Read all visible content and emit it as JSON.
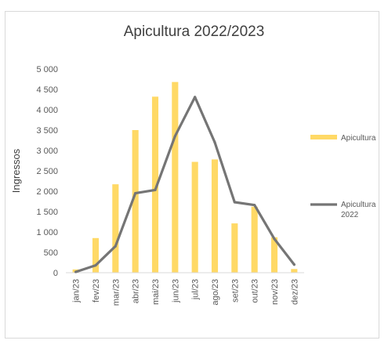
{
  "chart_data": {
    "type": "bar+line",
    "title": "Apicultura 2022/2023",
    "ylabel": "Ingressos",
    "xlabel": "",
    "ylim": [
      0,
      5000
    ],
    "yticks": [
      0,
      500,
      1000,
      1500,
      2000,
      2500,
      3000,
      3500,
      4000,
      4500,
      5000
    ],
    "ytick_labels": [
      "0",
      "500",
      "1 000",
      "1 500",
      "2 000",
      "2 500",
      "3 000",
      "3 500",
      "4 000",
      "4 500",
      "5 000"
    ],
    "grid": false,
    "legend_position": "right",
    "categories": [
      "jan/23",
      "fev/23",
      "mar/23",
      "abr/23",
      "mai/23",
      "jun/23",
      "jul/23",
      "ago/23",
      "set/23",
      "out/23",
      "nov/23",
      "dez/23"
    ],
    "series": [
      {
        "name": "Apicultura",
        "kind": "bar",
        "color": "#ffd966",
        "values": [
          80,
          850,
          2170,
          3500,
          4320,
          4680,
          2720,
          2780,
          1210,
          1620,
          870,
          90
        ]
      },
      {
        "name": "Apicultura 2022",
        "legend_lines": [
          "Apicultura",
          "2022"
        ],
        "kind": "line",
        "color": "#757575",
        "values": [
          20,
          180,
          650,
          1950,
          2030,
          3350,
          4310,
          3200,
          1730,
          1660,
          830,
          200
        ]
      }
    ]
  }
}
